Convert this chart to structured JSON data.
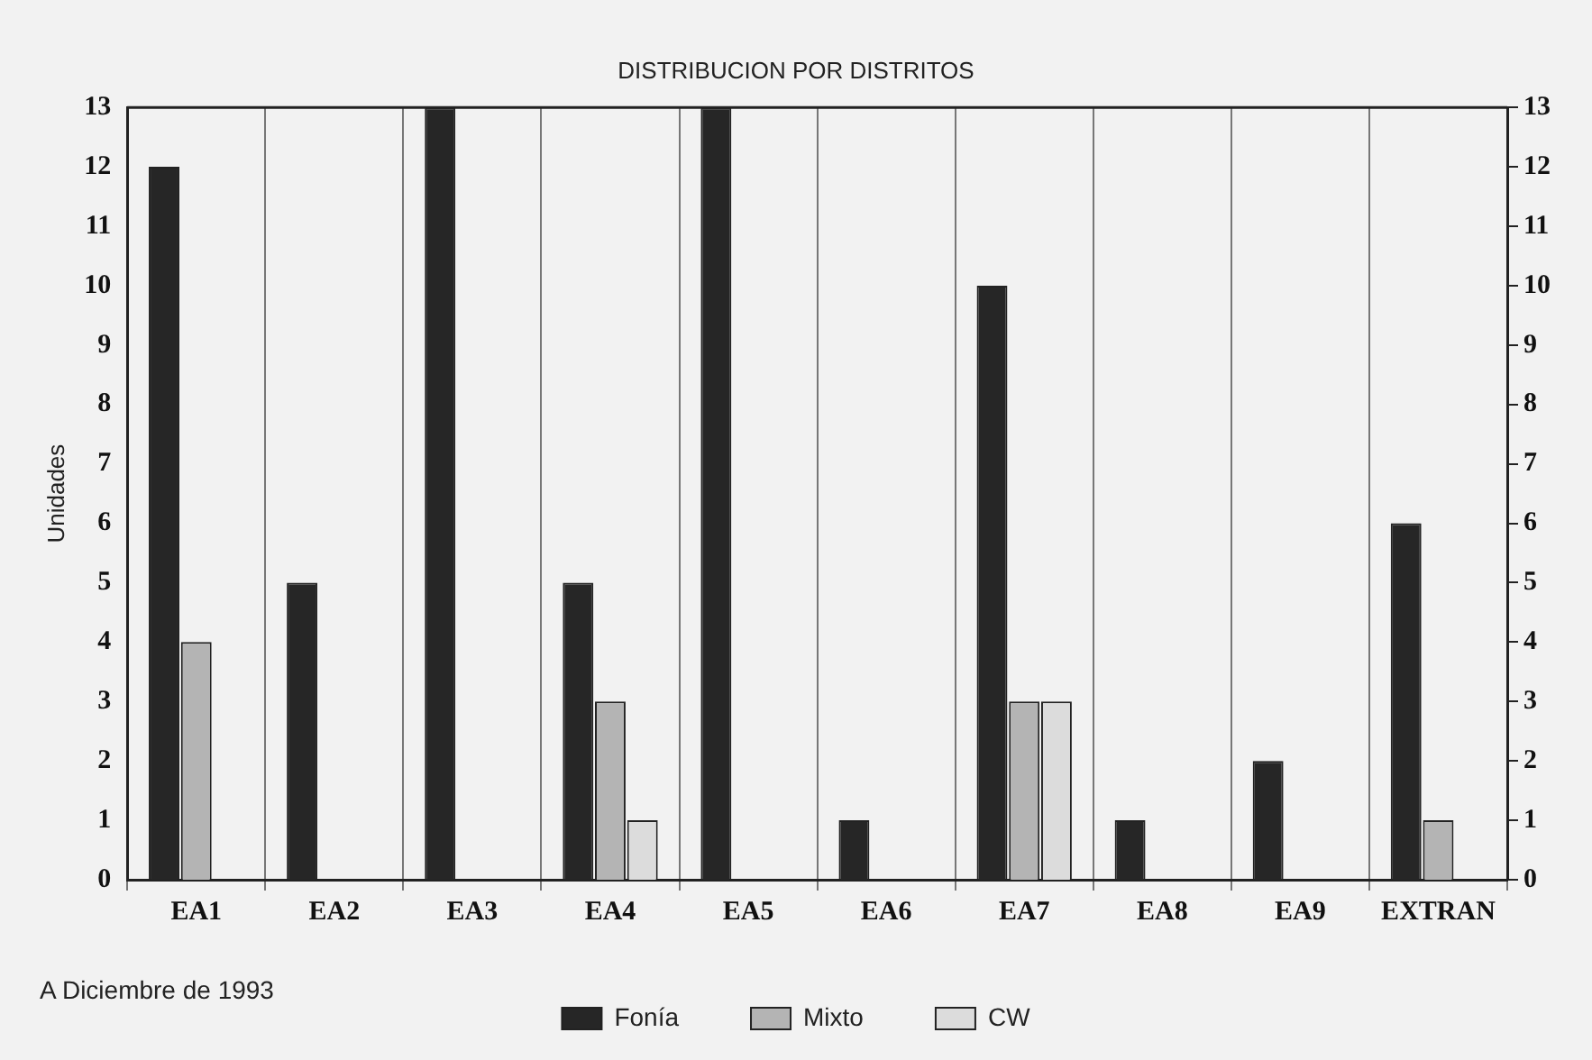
{
  "chart_data": {
    "type": "bar",
    "title": "DISTRIBUCION POR DISTRITOS",
    "ylabel": "Unidades",
    "categories": [
      "EA1",
      "EA2",
      "EA3",
      "EA4",
      "EA5",
      "EA6",
      "EA7",
      "EA8",
      "EA9",
      "EXTRAN"
    ],
    "series": [
      {
        "name": "Fonía",
        "color": "#262626",
        "values": [
          12,
          5,
          13,
          5,
          13,
          1,
          10,
          1,
          2,
          6
        ]
      },
      {
        "name": "Mixto",
        "color": "#b4b4b4",
        "values": [
          4,
          0,
          0,
          3,
          0,
          0,
          3,
          0,
          0,
          1
        ]
      },
      {
        "name": "CW",
        "color": "#dcdcdc",
        "values": [
          0,
          0,
          0,
          1,
          0,
          0,
          3,
          0,
          0,
          0
        ]
      }
    ],
    "ylim": [
      0,
      13
    ],
    "yticks": [
      0,
      1,
      2,
      3,
      4,
      5,
      6,
      7,
      8,
      9,
      10,
      11,
      12,
      13
    ],
    "y2lim": [
      0,
      13
    ],
    "y2ticks": [
      0,
      1,
      2,
      3,
      4,
      5,
      6,
      7,
      8,
      9,
      10,
      11,
      12,
      13
    ],
    "grid": "x",
    "legend": "bottom",
    "annotations": [
      "A Diciembre de 1993"
    ]
  }
}
